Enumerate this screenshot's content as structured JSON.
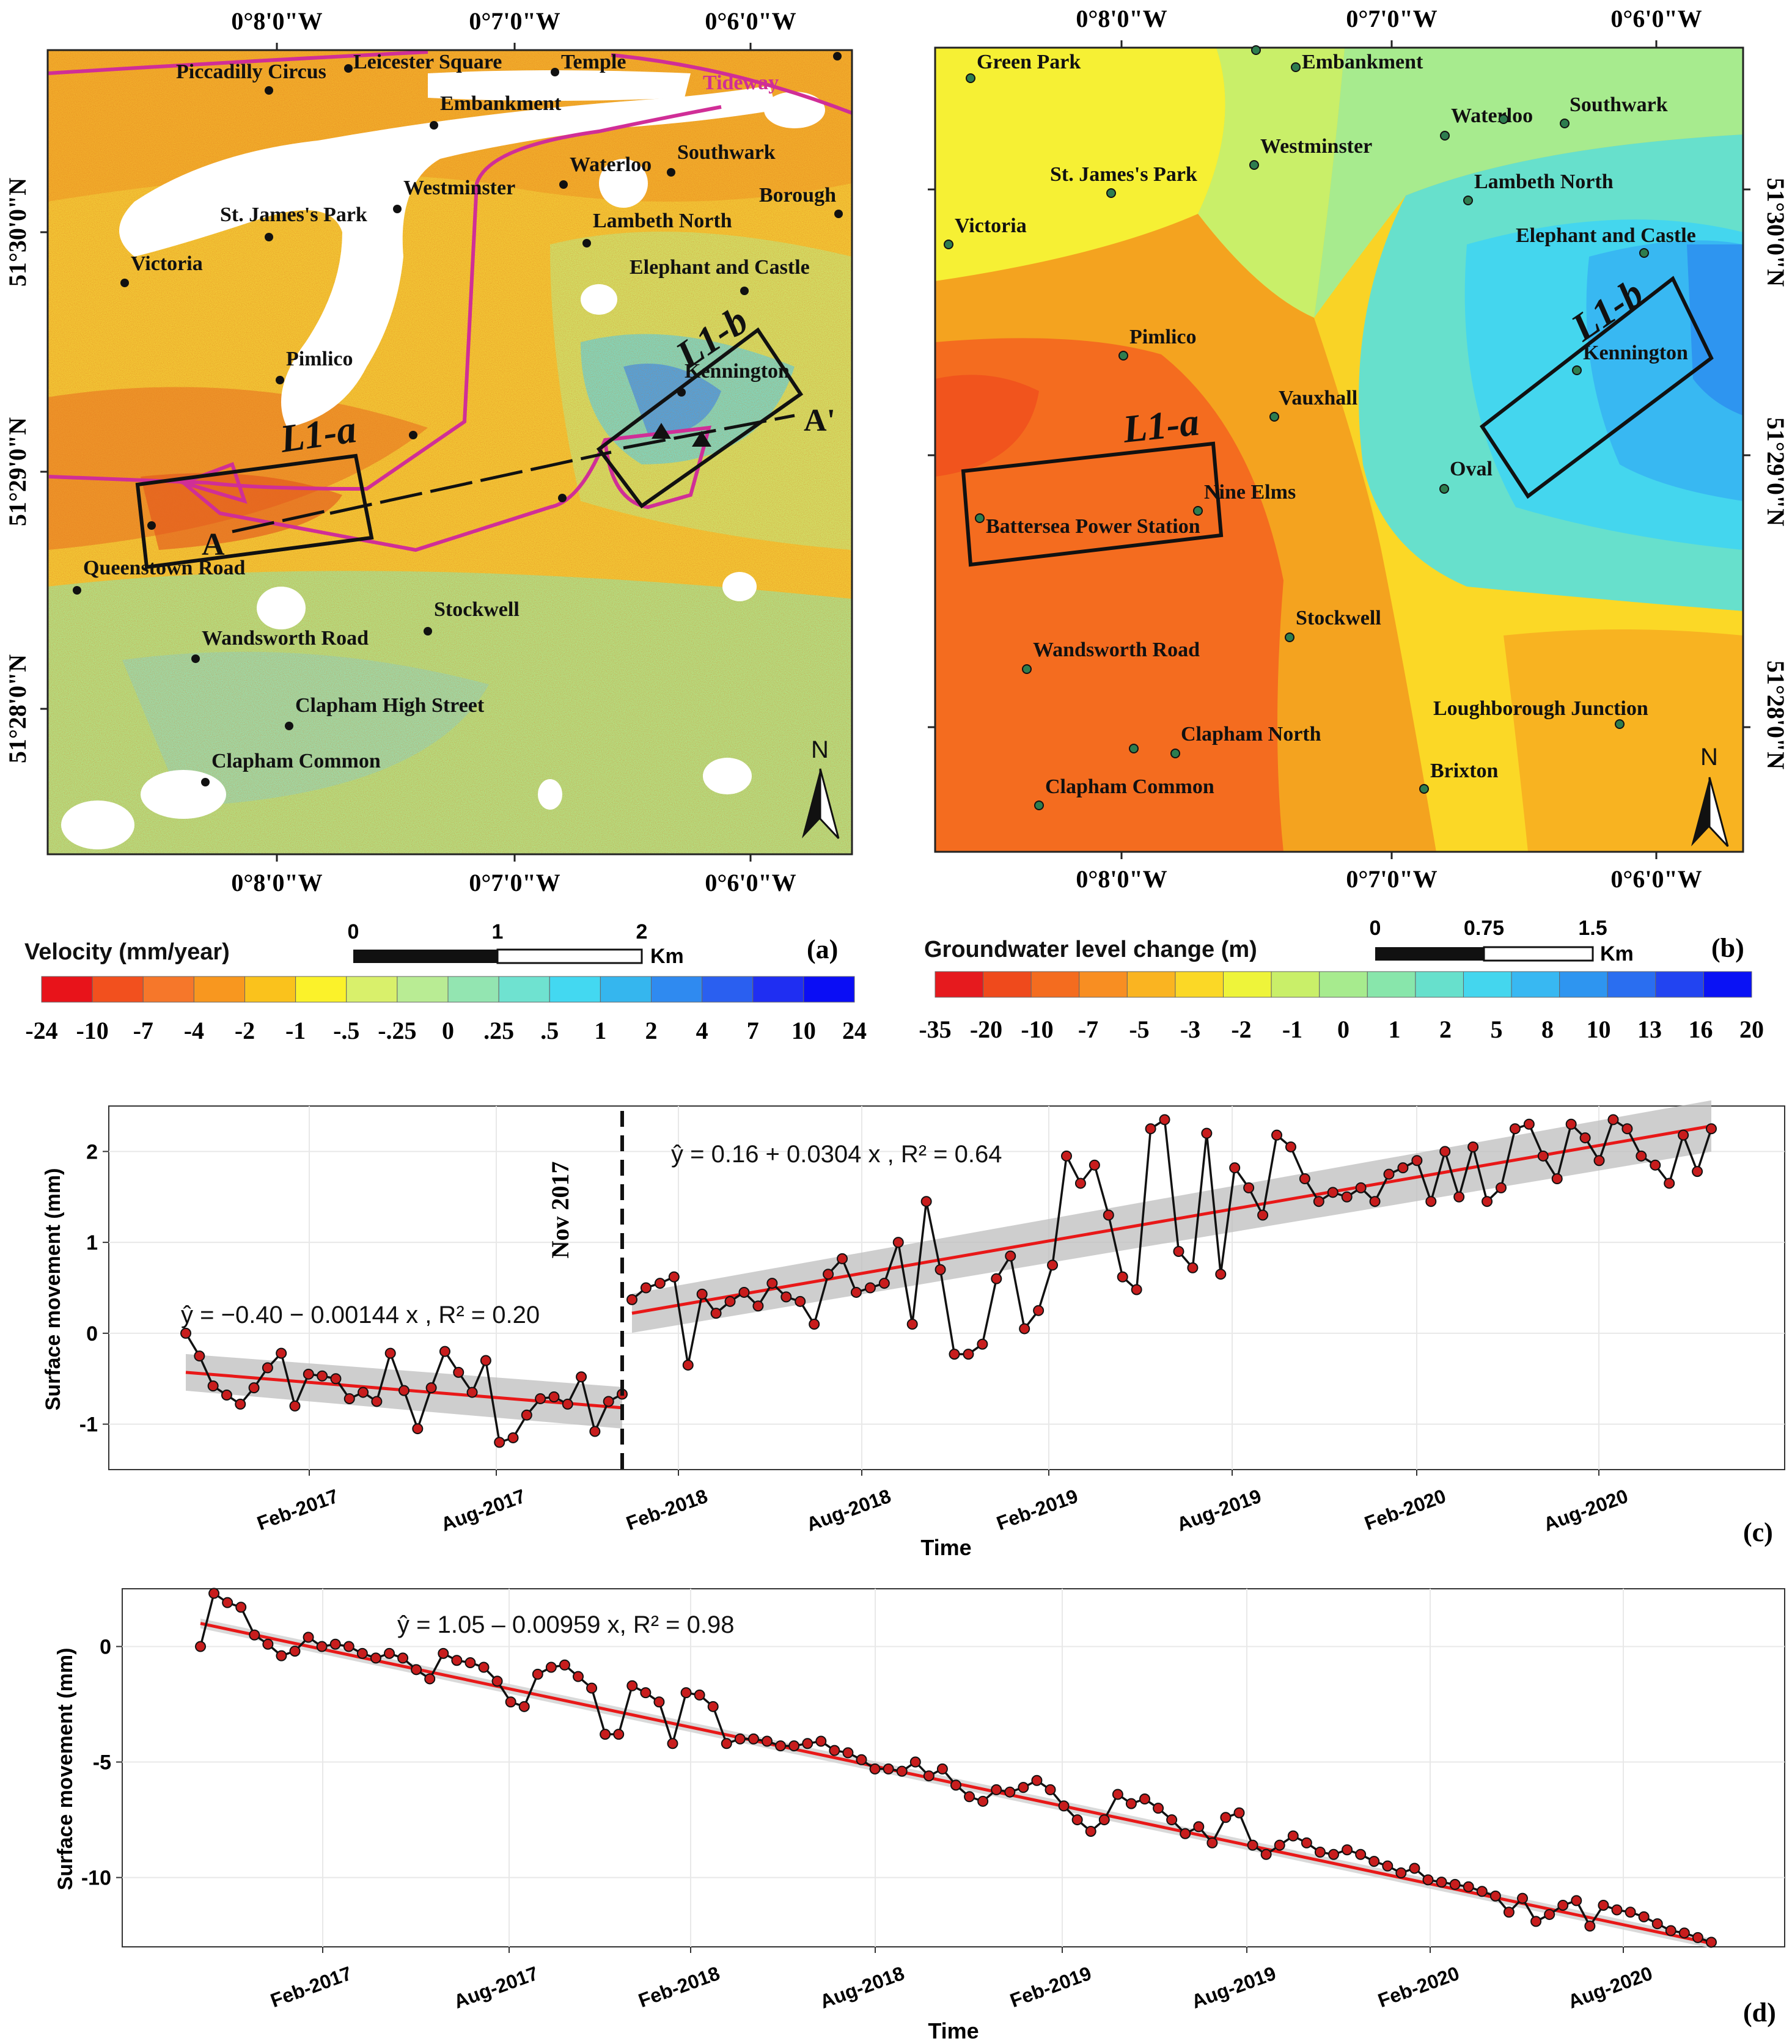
{
  "panel_a": {
    "letter": "(a)",
    "top_ticks": [
      "0°8'0\"W",
      "0°7'0\"W",
      "0°6'0\"W"
    ],
    "bottom_ticks": [
      "0°8'0\"W",
      "0°7'0\"W",
      "0°6'0\"W"
    ],
    "left_ticks": [
      "51°30'0\"N",
      "51°29'0\"N",
      "51°28'0\"N"
    ],
    "stations": [
      "Piccadilly Circus",
      "Leicester Square",
      "Temple",
      "Embankment",
      "Westminster",
      "Waterloo",
      "Southwark",
      "Borough",
      "St. James's Park",
      "Lambeth North",
      "Victoria",
      "Elephant and Castle",
      "Pimlico",
      "Kennington",
      "Queenstown Road",
      "Stockwell",
      "Wandsworth Road",
      "Clapham High Street",
      "Clapham Common"
    ],
    "tideway_label": "Tideway",
    "box_a": "L1-a",
    "box_b": "L1-b",
    "profile_start": "A",
    "profile_end": "A'",
    "north": "N",
    "scale_title": "Velocity (mm/year)",
    "scale_ticks": [
      "0",
      "1",
      "2"
    ],
    "scale_unit": "Km",
    "colorbar_colors": [
      "#e8131a",
      "#f2501e",
      "#f6772a",
      "#f8971f",
      "#fac21c",
      "#fbf22a",
      "#d9f06b",
      "#b9ec94",
      "#93e5b1",
      "#6fe2d0",
      "#43d8f1",
      "#35b6ee",
      "#2f8af0",
      "#2a5ff0",
      "#1f2ef2",
      "#0a0df5"
    ],
    "colorbar_labels": [
      "-24",
      "-10",
      "-7",
      "-4",
      "-2",
      "-1",
      "-.5",
      "-.25",
      "0",
      ".25",
      ".5",
      "1",
      "2",
      "4",
      "7",
      "10",
      "24"
    ]
  },
  "panel_b": {
    "letter": "(b)",
    "top_ticks": [
      "0°8'0\"W",
      "0°7'0\"W",
      "0°6'0\"W"
    ],
    "bottom_ticks": [
      "0°8'0\"W",
      "0°7'0\"W",
      "0°6'0\"W"
    ],
    "right_ticks": [
      "51°30'0\"N",
      "51°29'0\"N",
      "51°28'0\"N"
    ],
    "stations": [
      "Green Park",
      "Embankment",
      "Waterloo",
      "Southwark",
      "Westminster",
      "St. James's Park",
      "Lambeth North",
      "Victoria",
      "Elephant and Castle",
      "Pimlico",
      "Kennington",
      "Vauxhall",
      "Oval",
      "Nine Elms",
      "Battersea Power Station",
      "Stockwell",
      "Wandsworth Road",
      "Loughborough Junction",
      "Clapham North",
      "Brixton",
      "Clapham Common"
    ],
    "box_a": "L1-a",
    "box_b": "L1-b",
    "north": "N",
    "scale_title": "Groundwater level change (m)",
    "scale_ticks": [
      "0",
      "0.75",
      "1.5"
    ],
    "scale_unit": "Km",
    "colorbar_colors": [
      "#e61a1e",
      "#ef4a1c",
      "#f46c1f",
      "#f88e22",
      "#fab421",
      "#fbd826",
      "#eef43a",
      "#c9ef69",
      "#a7eb8e",
      "#88e6ab",
      "#67e0cc",
      "#44d6ee",
      "#38b8f2",
      "#2e95f0",
      "#2a6ef0",
      "#2244f1",
      "#0a12f5"
    ],
    "colorbar_labels": [
      "-35",
      "-20",
      "-10",
      "-7",
      "-5",
      "-3",
      "-2",
      "-1",
      "0",
      "1",
      "2",
      "5",
      "8",
      "10",
      "13",
      "16",
      "20"
    ]
  },
  "panel_c": {
    "letter": "(c)",
    "xlabel": "Time",
    "ylabel": "Surface movement (mm)",
    "eq1": "ŷ = −0.40 − 0.00144 x , R² = 0.20",
    "eq2": "ŷ = 0.16 + 0.0304 x , R² = 0.64",
    "event_label": "Nov 2017",
    "x_ticks": [
      "Feb-2017",
      "Aug-2017",
      "Feb-2018",
      "Aug-2018",
      "Feb-2019",
      "Aug-2019",
      "Feb-2020",
      "Aug-2020"
    ],
    "y_ticks": [
      "2",
      "1",
      "0",
      "-1"
    ]
  },
  "panel_d": {
    "letter": "(d)",
    "xlabel": "Time",
    "ylabel": "Surface movement (mm)",
    "eq": "ŷ = 1.05 – 0.00959 x, R² = 0.98",
    "x_ticks": [
      "Feb-2017",
      "Aug-2017",
      "Feb-2018",
      "Aug-2018",
      "Feb-2019",
      "Aug-2019",
      "Feb-2020",
      "Aug-2020"
    ],
    "y_ticks": [
      "0",
      "-5",
      "-10"
    ]
  },
  "chart_data": [
    {
      "type": "line",
      "x_unit": "days since first acquisition",
      "series": [
        {
          "values": [
            0,
            -0.25,
            -0.58,
            -0.68,
            -0.78,
            -0.6,
            -0.38,
            -0.22,
            -0.8,
            -0.45,
            -0.47,
            -0.5,
            -0.72,
            -0.65,
            -0.75,
            -0.22,
            -0.63,
            -1.05,
            -0.6,
            -0.2,
            -0.43,
            -0.65,
            -0.3,
            -1.2,
            -1.15,
            -0.9,
            -0.72,
            -0.7,
            -0.78,
            -0.48,
            -1.08,
            -0.75,
            -0.67
          ]
        },
        {
          "values": [
            0.37,
            0.5,
            0.55,
            0.62,
            -0.35,
            0.43,
            0.22,
            0.35,
            0.45,
            0.3,
            0.55,
            0.4,
            0.35,
            0.1,
            0.65,
            0.82,
            0.45,
            0.5,
            0.55,
            1.0,
            0.1,
            1.45,
            0.7,
            -0.23,
            -0.23,
            -0.12,
            0.6,
            0.85,
            0.05,
            0.25,
            0.75,
            1.95,
            1.65,
            1.85,
            1.3,
            0.62,
            0.48,
            2.25,
            2.35,
            0.9,
            0.72,
            2.2,
            0.65,
            1.82,
            1.6,
            1.3,
            2.18,
            2.05,
            1.7,
            1.45,
            1.55,
            1.5,
            1.6,
            1.45,
            1.75,
            1.82,
            1.9,
            1.45,
            2.0,
            1.5,
            2.05,
            1.45,
            1.6,
            2.25,
            2.3,
            1.95,
            1.7,
            2.3,
            2.15,
            1.9,
            2.35,
            2.25,
            1.95,
            1.85,
            1.65,
            2.18,
            1.78,
            2.25
          ]
        }
      ],
      "fits": [
        {
          "intercept": -0.4,
          "slope": -0.00144,
          "r2": 0.2
        },
        {
          "intercept": 0.16,
          "slope": 0.0304,
          "r2": 0.64
        }
      ],
      "ylim": [
        -1.5,
        2.5
      ]
    },
    {
      "type": "line",
      "series": [
        {
          "values": [
            0,
            2.3,
            1.9,
            1.7,
            0.5,
            0.1,
            -0.4,
            -0.2,
            0.4,
            0.0,
            0.1,
            0.0,
            -0.3,
            -0.5,
            -0.3,
            -0.5,
            -1.0,
            -1.4,
            -0.3,
            -0.6,
            -0.7,
            -0.9,
            -1.5,
            -2.4,
            -2.6,
            -1.2,
            -0.9,
            -0.8,
            -1.3,
            -1.8,
            -3.8,
            -3.8,
            -1.7,
            -2.0,
            -2.4,
            -4.2,
            -2.0,
            -2.1,
            -2.6,
            -4.2,
            -4.0,
            -4.0,
            -4.1,
            -4.3,
            -4.3,
            -4.2,
            -4.1,
            -4.5,
            -4.6,
            -4.9,
            -5.3,
            -5.3,
            -5.4,
            -5.0,
            -5.6,
            -5.3,
            -6.0,
            -6.5,
            -6.7,
            -6.2,
            -6.3,
            -6.1,
            -5.8,
            -6.2,
            -6.9,
            -7.5,
            -8.0,
            -7.5,
            -6.4,
            -6.8,
            -6.6,
            -7.0,
            -7.5,
            -8.1,
            -7.8,
            -8.5,
            -7.4,
            -7.2,
            -8.6,
            -9.0,
            -8.6,
            -8.2,
            -8.5,
            -8.9,
            -9.0,
            -8.8,
            -9.0,
            -9.3,
            -9.5,
            -9.8,
            -9.6,
            -10.1,
            -10.2,
            -10.3,
            -10.4,
            -10.6,
            -10.8,
            -11.5,
            -10.9,
            -11.9,
            -11.6,
            -11.2,
            -11.0,
            -12.1,
            -11.2,
            -11.4,
            -11.5,
            -11.7,
            -12.0,
            -12.3,
            -12.4,
            -12.6,
            -12.8
          ]
        }
      ],
      "fits": [
        {
          "intercept": 1.05,
          "slope": -0.00959,
          "r2": 0.98
        }
      ],
      "ylim": [
        -13,
        2.5
      ]
    }
  ]
}
